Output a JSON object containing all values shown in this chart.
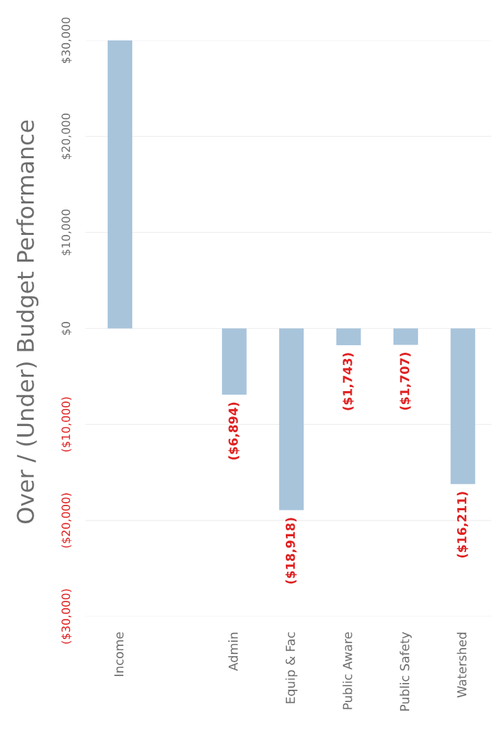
{
  "chart_data": {
    "type": "bar",
    "title": "Over / (Under) Budget Performance",
    "categories": [
      "Income",
      null,
      "Admin",
      "Equip & Fac",
      "Public Aware",
      "Public Safety",
      "Watershed"
    ],
    "values": [
      30000,
      null,
      -6894,
      -18918,
      -1743,
      -1707,
      -16211
    ],
    "value_labels": [
      null,
      null,
      "($6,894)",
      "($18,918)",
      "($1,743)",
      "($1,707)",
      "($16,211)"
    ],
    "color": "#a8c4db",
    "ylim": [
      -30000,
      30000
    ],
    "yticks": [
      {
        "value": -30000,
        "label": "($30,000)"
      },
      {
        "value": -20000,
        "label": "($20,000)"
      },
      {
        "value": -10000,
        "label": "($10,000)"
      },
      {
        "value": 0,
        "label": "$0"
      },
      {
        "value": 10000,
        "label": "$10,000"
      },
      {
        "value": 20000,
        "label": "$20,000"
      },
      {
        "value": 30000,
        "label": "$30,000"
      }
    ],
    "grid": "y"
  }
}
